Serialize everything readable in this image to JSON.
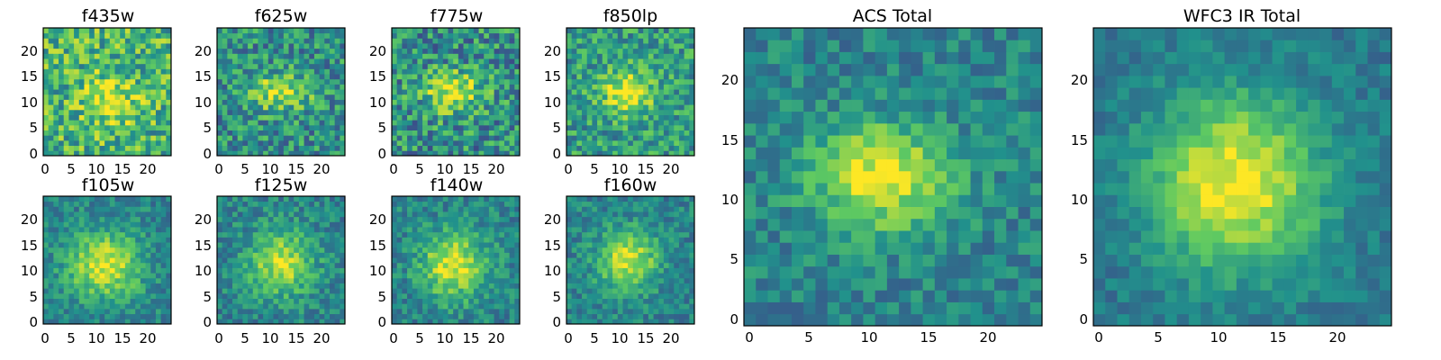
{
  "chart_data": {
    "type": "heatmap",
    "colormap": "viridis",
    "colormap_stops": [
      "#440154",
      "#3b528b",
      "#21918c",
      "#5ec962",
      "#fde725"
    ],
    "grid_size": 25,
    "panels": [
      {
        "id": "f435w",
        "title": "f435w",
        "xticks": [
          "0",
          "5",
          "10",
          "15",
          "20"
        ],
        "yticks": [
          "0",
          "5",
          "10",
          "15",
          "20"
        ],
        "xlim": [
          0,
          25
        ],
        "ylim": [
          0,
          25
        ],
        "center": [
          12.5,
          10.5
        ],
        "sigma": [
          3.5,
          3.5
        ],
        "peak": 0.3,
        "noise": 0.55,
        "base": 0.65,
        "seed": 11
      },
      {
        "id": "f625w",
        "title": "f625w",
        "xticks": [
          "0",
          "5",
          "10",
          "15",
          "20"
        ],
        "yticks": [
          "0",
          "5",
          "10",
          "15",
          "20"
        ],
        "xlim": [
          0,
          25
        ],
        "ylim": [
          0,
          25
        ],
        "center": [
          11.5,
          12.0
        ],
        "sigma": [
          4.5,
          2.5
        ],
        "peak": 0.4,
        "noise": 0.5,
        "base": 0.5,
        "seed": 23
      },
      {
        "id": "f775w",
        "title": "f775w",
        "xticks": [
          "0",
          "5",
          "10",
          "15",
          "20"
        ],
        "yticks": [
          "0",
          "5",
          "10",
          "15",
          "20"
        ],
        "xlim": [
          0,
          25
        ],
        "ylim": [
          0,
          25
        ],
        "center": [
          11.5,
          12.0
        ],
        "sigma": [
          4.0,
          2.8
        ],
        "peak": 0.45,
        "noise": 0.55,
        "base": 0.5,
        "seed": 37
      },
      {
        "id": "f850lp",
        "title": "f850lp",
        "xticks": [
          "0",
          "5",
          "10",
          "15",
          "20"
        ],
        "yticks": [
          "0",
          "5",
          "10",
          "15",
          "20"
        ],
        "xlim": [
          0,
          25
        ],
        "ylim": [
          0,
          25
        ],
        "center": [
          11.5,
          12.0
        ],
        "sigma": [
          3.5,
          3.0
        ],
        "peak": 0.45,
        "noise": 0.45,
        "base": 0.55,
        "seed": 41
      },
      {
        "id": "f105w",
        "title": "f105w",
        "xticks": [
          "0",
          "5",
          "10",
          "15",
          "20"
        ],
        "yticks": [
          "0",
          "5",
          "10",
          "15",
          "20"
        ],
        "xlim": [
          0,
          25
        ],
        "ylim": [
          0,
          25
        ],
        "center": [
          11.5,
          11.0
        ],
        "sigma": [
          5.0,
          4.5
        ],
        "peak": 0.5,
        "noise": 0.3,
        "base": 0.45,
        "seed": 53
      },
      {
        "id": "f125w",
        "title": "f125w",
        "xticks": [
          "0",
          "5",
          "10",
          "15",
          "20"
        ],
        "yticks": [
          "0",
          "5",
          "10",
          "15",
          "20"
        ],
        "xlim": [
          0,
          25
        ],
        "ylim": [
          0,
          25
        ],
        "center": [
          12.0,
          11.5
        ],
        "sigma": [
          4.5,
          4.5
        ],
        "peak": 0.45,
        "noise": 0.32,
        "base": 0.45,
        "seed": 67
      },
      {
        "id": "f140w",
        "title": "f140w",
        "xticks": [
          "0",
          "5",
          "10",
          "15",
          "20"
        ],
        "yticks": [
          "0",
          "5",
          "10",
          "15",
          "20"
        ],
        "xlim": [
          0,
          25
        ],
        "ylim": [
          0,
          25
        ],
        "center": [
          11.5,
          11.0
        ],
        "sigma": [
          4.5,
          4.5
        ],
        "peak": 0.5,
        "noise": 0.32,
        "base": 0.45,
        "seed": 79
      },
      {
        "id": "f160w",
        "title": "f160w",
        "xticks": [
          "0",
          "5",
          "10",
          "15",
          "20"
        ],
        "yticks": [
          "0",
          "5",
          "10",
          "15",
          "20"
        ],
        "xlim": [
          0,
          25
        ],
        "ylim": [
          0,
          25
        ],
        "center": [
          11.5,
          12.0
        ],
        "sigma": [
          4.0,
          4.0
        ],
        "peak": 0.5,
        "noise": 0.3,
        "base": 0.45,
        "seed": 83
      },
      {
        "id": "acs-total",
        "title": "ACS Total",
        "xticks": [
          "0",
          "5",
          "10",
          "15",
          "20"
        ],
        "yticks": [
          "0",
          "5",
          "10",
          "15",
          "20"
        ],
        "xlim": [
          0,
          25
        ],
        "ylim": [
          0,
          25
        ],
        "center": [
          11.0,
          12.0
        ],
        "sigma": [
          4.0,
          3.0
        ],
        "peak": 0.55,
        "noise": 0.3,
        "base": 0.45,
        "seed": 97
      },
      {
        "id": "wfc3-total",
        "title": "WFC3 IR Total",
        "xticks": [
          "0",
          "5",
          "10",
          "15",
          "20"
        ],
        "yticks": [
          "0",
          "5",
          "10",
          "15",
          "20"
        ],
        "xlim": [
          0,
          25
        ],
        "ylim": [
          0,
          25
        ],
        "center": [
          11.5,
          11.5
        ],
        "sigma": [
          5.0,
          5.0
        ],
        "peak": 0.6,
        "noise": 0.2,
        "base": 0.4,
        "seed": 101
      }
    ]
  }
}
